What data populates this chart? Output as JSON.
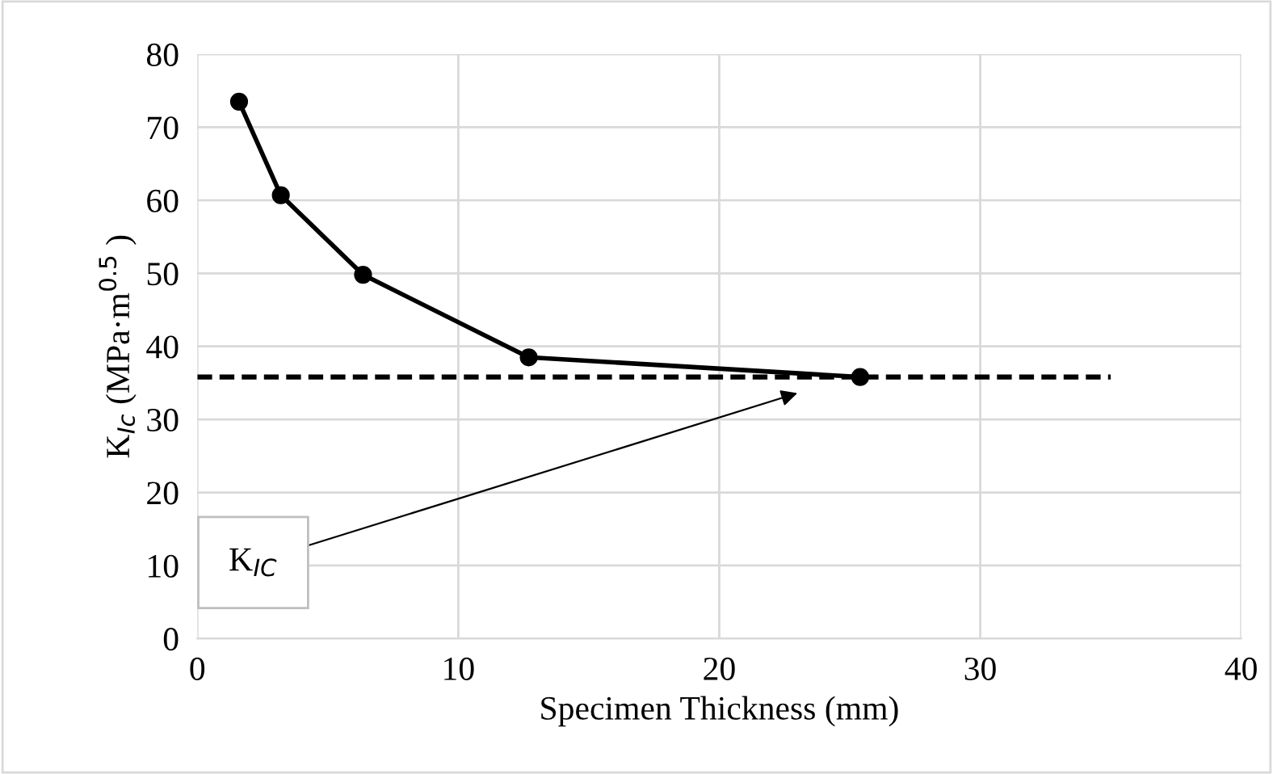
{
  "chart_data": {
    "type": "line",
    "xlabel": "Specimen Thickness (mm)",
    "ylabel": "K$_{Ic}$ (MPa·m$^{0.5}$ )",
    "xlim": [
      0,
      40
    ],
    "xticks": [
      0,
      10,
      20,
      30,
      40
    ],
    "ylim": [
      0,
      80
    ],
    "yticks": [
      0,
      10,
      20,
      30,
      40,
      50,
      60,
      70,
      80
    ],
    "grid": true,
    "series": [
      {
        "color": "#000000",
        "x": [
          1.6,
          3.2,
          6.35,
          12.7,
          25.4
        ],
        "values": [
          73.5,
          60.7,
          49.8,
          38.5,
          35.8
        ],
        "marker": "circle",
        "line_style": "solid"
      },
      {
        "color": "#000000",
        "x": [
          0,
          35
        ],
        "values": [
          35.8,
          35.8
        ],
        "marker": "none",
        "line_style": "dashed"
      }
    ],
    "annotations": [
      "K$_{IC}$"
    ]
  }
}
